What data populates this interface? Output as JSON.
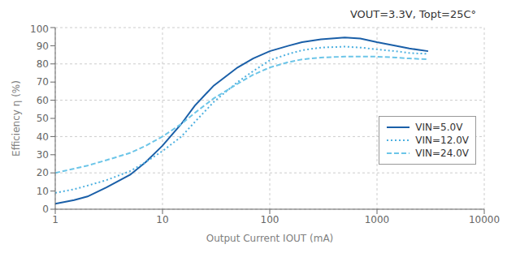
{
  "chart_data": {
    "type": "line",
    "title": "VOUT=3.3V, Topt=25C°",
    "xlabel": "Output Current IOUT (mA)",
    "ylabel": "Efficiency η (%)",
    "log": "x",
    "grid": true,
    "legend": "right",
    "xlim": [
      1,
      10000
    ],
    "ylim": [
      0,
      100
    ],
    "xticks": [
      1,
      10,
      100,
      1000,
      10000
    ],
    "yticks": [
      0,
      10,
      20,
      30,
      40,
      50,
      60,
      70,
      80,
      90,
      100
    ],
    "series": [
      {
        "name": "VIN=5.0V",
        "line_style": "solid",
        "color": "#1a5fa8",
        "x": [
          1,
          1.5,
          2,
          3,
          5,
          7,
          10,
          15,
          20,
          30,
          50,
          70,
          100,
          150,
          200,
          300,
          500,
          700,
          1000,
          1500,
          2000,
          3000
        ],
        "values": [
          3,
          5,
          7,
          12,
          19,
          26,
          35,
          47,
          57,
          68,
          78,
          83,
          87,
          90,
          92,
          93.5,
          94.5,
          94,
          92,
          90,
          88.5,
          87
        ]
      },
      {
        "name": "VIN=12.0V",
        "line_style": "dotted",
        "color": "#4db0e0",
        "x": [
          1,
          1.5,
          2,
          3,
          5,
          7,
          10,
          15,
          20,
          30,
          50,
          70,
          100,
          150,
          200,
          300,
          500,
          700,
          1000,
          1500,
          2000,
          3000
        ],
        "values": [
          9,
          11,
          13,
          16,
          21,
          26,
          32,
          40,
          48,
          59,
          70,
          76,
          82,
          85.5,
          87.5,
          89,
          89.5,
          89,
          88,
          87,
          86,
          85.5
        ]
      },
      {
        "name": "VIN=24.0V",
        "line_style": "dashed",
        "color": "#6cc5e8",
        "x": [
          1,
          2,
          3,
          5,
          7,
          10,
          15,
          20,
          30,
          50,
          70,
          100,
          150,
          200,
          300,
          500,
          700,
          1000,
          1500,
          2000,
          3000
        ],
        "values": [
          20,
          24,
          27,
          31,
          35,
          40,
          47,
          53,
          61,
          69,
          74,
          78,
          81,
          82.5,
          83.5,
          84,
          84,
          84,
          83.5,
          83,
          82.5
        ]
      }
    ]
  }
}
